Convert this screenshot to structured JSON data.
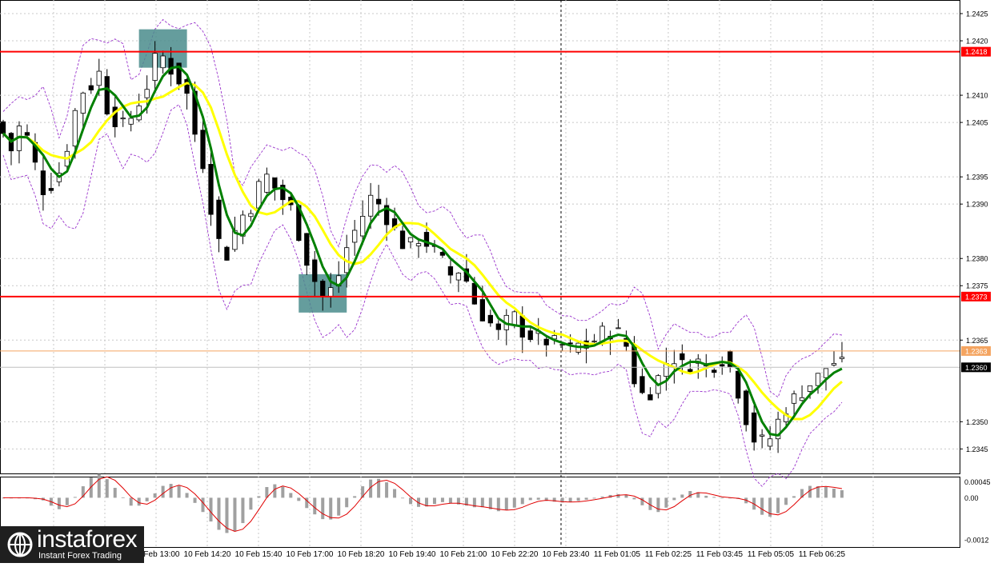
{
  "chart_data": {
    "type": "candlestick",
    "instrument_note": "",
    "price_axis": {
      "ylim": [
        1.23405,
        1.24275
      ],
      "ticks": [
        "1.2425",
        "1.2420",
        "1.2410",
        "1.2405",
        "1.2395",
        "1.2390",
        "1.2380",
        "1.2375",
        "1.2365",
        "1.2350",
        "1.2345"
      ],
      "tick_values": [
        1.2425,
        1.242,
        1.241,
        1.2405,
        1.2395,
        1.239,
        1.238,
        1.2375,
        1.2365,
        1.235,
        1.2345
      ]
    },
    "levels": [
      {
        "label": "1.2418",
        "value": 1.2418,
        "color": "#ff0000"
      },
      {
        "label": "1.2373",
        "value": 1.2373,
        "color": "#ff0000"
      },
      {
        "label": "1.2363",
        "value": 1.2363,
        "color": "#f4a460"
      },
      {
        "label": "1.2360",
        "value": 1.236,
        "color": "#000000"
      }
    ],
    "time_axis": {
      "labels": [
        "10 Feb 13:00",
        "10 Feb 14:20",
        "10 Feb 15:40",
        "10 Feb 17:00",
        "10 Feb 18:20",
        "10 Feb 19:40",
        "10 Feb 21:00",
        "10 Feb 22:20",
        "10 Feb 23:40",
        "11 Feb 01:05",
        "11 Feb 02:25",
        "11 Feb 03:45",
        "11 Feb 05:05",
        "11 Feb 06:25"
      ],
      "day_separator_after": "10 Feb 23:40"
    },
    "close_series": [
      1.2403,
      1.24,
      1.2404,
      1.2402,
      1.2397,
      1.2393,
      1.2394,
      1.2396,
      1.2401,
      1.2407,
      1.2411,
      1.2412,
      1.2414,
      1.2408,
      1.2406,
      1.2404,
      1.2406,
      1.2409,
      1.2412,
      1.2416,
      1.2417,
      1.2415,
      1.2413,
      1.241,
      1.2403,
      1.2398,
      1.239,
      1.2383,
      1.2381,
      1.2385,
      1.2388,
      1.239,
      1.2393,
      1.2395,
      1.2393,
      1.2391,
      1.2389,
      1.2385,
      1.238,
      1.2376,
      1.2373,
      1.2374,
      1.2377,
      1.2382,
      1.2385,
      1.2388,
      1.2391,
      1.239,
      1.2388,
      1.2385,
      1.2383,
      1.2382,
      1.2384,
      1.2383,
      1.2381,
      1.2379,
      1.2377,
      1.2378,
      1.2376,
      1.2372,
      1.237,
      1.2368,
      1.2366,
      1.2368,
      1.2369,
      1.2367,
      1.2366,
      1.2365,
      1.2365,
      1.2364,
      1.2364,
      1.2363,
      1.2364,
      1.2364,
      1.2365,
      1.2366,
      1.2367,
      1.2366,
      1.2364,
      1.2358,
      1.2355,
      1.2356,
      1.2358,
      1.2361,
      1.2362,
      1.236,
      1.2361,
      1.2361,
      1.236,
      1.2361,
      1.2362,
      1.236,
      1.2356,
      1.2351,
      1.2347,
      1.2346,
      1.2347,
      1.235,
      1.2353,
      1.2354,
      1.2356,
      1.2357,
      1.2358,
      1.236,
      1.2361,
      1.236
    ],
    "indicators": [
      {
        "kind": "ema_fast",
        "color": "#008000"
      },
      {
        "kind": "sma_slow",
        "color": "#ffff00"
      },
      {
        "kind": "bollinger",
        "color": "#9932cc"
      }
    ],
    "signal_boxes": [
      {
        "kind": "sell",
        "at_price": 1.2418,
        "color": "#4a8c8c"
      },
      {
        "kind": "buy",
        "at_price": 1.2373,
        "color": "#4a8c8c"
      }
    ],
    "oscillator": {
      "type": "macd",
      "ticks": [
        "0.00045",
        "0.00",
        "-0.0012"
      ],
      "tick_values": [
        0.00045,
        0.0,
        -0.0012
      ],
      "ylim": [
        -0.0014,
        0.0006
      ],
      "signal_color": "#e00000",
      "hist_color": "#a0a0a0"
    },
    "grid": true
  },
  "brand": {
    "name": "instaforex",
    "tagline": "Instant Forex Trading"
  },
  "colors": {
    "up_candle": "#ffffff",
    "down_candle": "#000000",
    "grid": "#c8c8c8"
  }
}
